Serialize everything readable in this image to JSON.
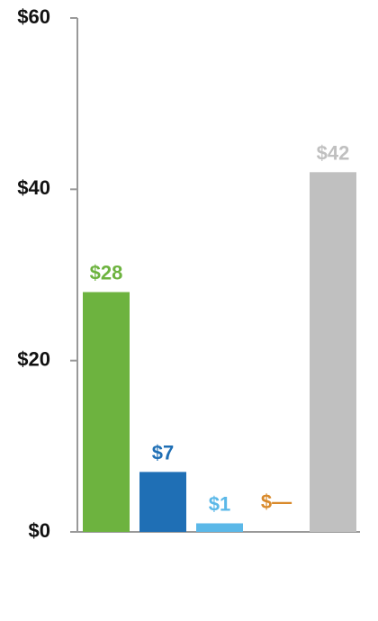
{
  "chart_data": {
    "type": "bar",
    "categories": [
      "",
      "",
      "",
      "",
      ""
    ],
    "values": [
      28,
      7,
      1,
      0,
      42
    ],
    "data_labels": [
      "$28",
      "$7",
      "$1",
      "$—",
      "$42"
    ],
    "colors": [
      "#6db33f",
      "#1f6fb5",
      "#5bb8e8",
      "#d98a2b",
      "#c0c0c0"
    ],
    "ylim": [
      0,
      60
    ],
    "yticks": [
      0,
      20,
      40,
      60
    ],
    "ytick_labels": [
      "$0",
      "$20",
      "$40",
      "$60"
    ],
    "grid": false,
    "title": "",
    "xlabel": "",
    "ylabel": ""
  }
}
